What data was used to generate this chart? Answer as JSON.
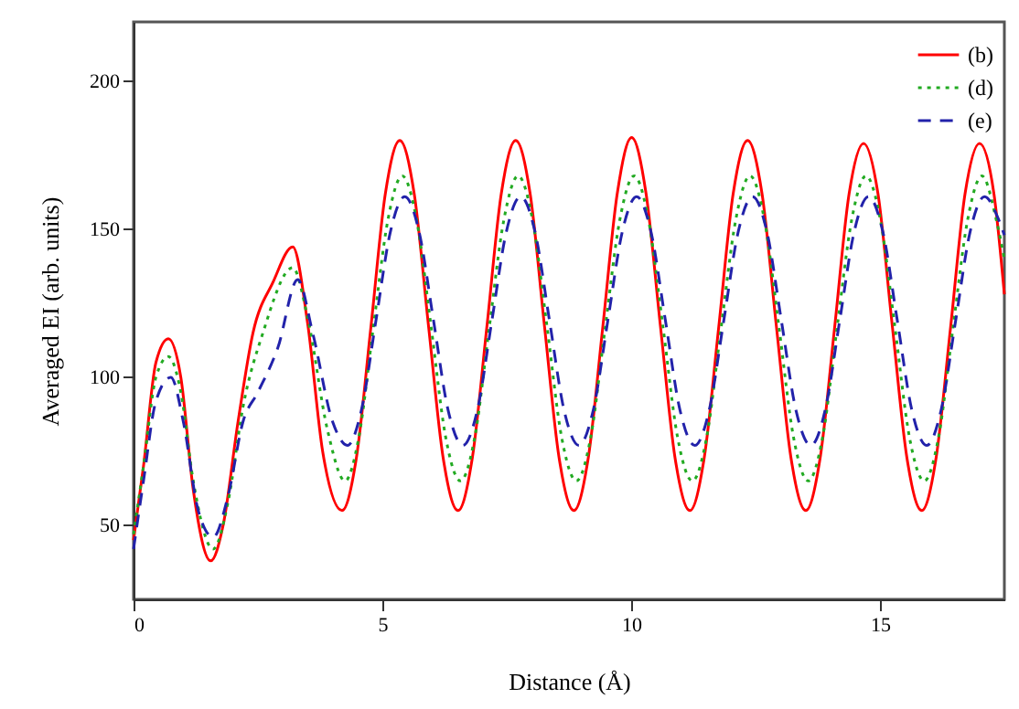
{
  "chart_data": {
    "type": "line",
    "xlabel": "Distance (Å)",
    "ylabel": "Averaged EI (arb. units)",
    "xlim": [
      0,
      17.5
    ],
    "xticks": [
      0,
      5,
      10,
      15
    ],
    "ylim": [
      25,
      220
    ],
    "yticks": [
      50,
      100,
      150,
      200
    ],
    "grid": false,
    "legend": "top right",
    "marker": "none",
    "series": [
      {
        "name": "(b)",
        "color": "#ff0000",
        "line_style": "solid",
        "x": [
          0,
          0.2,
          0.45,
          0.7,
          0.95,
          1.2,
          1.55,
          1.8,
          2.1,
          2.4,
          2.8,
          3.2,
          3.5,
          3.8,
          4.19,
          4.48,
          4.77,
          5.06,
          5.35,
          5.64,
          5.93,
          6.22,
          6.52,
          6.81,
          7.1,
          7.39,
          7.68,
          7.97,
          8.26,
          8.55,
          8.85,
          9.14,
          9.43,
          9.72,
          10.01,
          10.3,
          10.59,
          10.88,
          11.18,
          11.47,
          11.76,
          12.05,
          12.34,
          12.63,
          12.92,
          13.21,
          13.51,
          13.8,
          14.09,
          14.38,
          14.67,
          14.96,
          15.25,
          15.54,
          15.84,
          16.13,
          16.42,
          16.71,
          17.0,
          17.29,
          17.5
        ],
        "values": [
          45,
          70,
          105,
          113,
          100,
          62,
          38,
          50,
          85,
          115,
          132,
          144,
          118,
          75,
          55,
          73,
          117,
          162,
          180,
          162,
          117,
          73,
          55,
          73,
          117,
          162,
          180,
          162,
          117,
          73,
          55,
          73,
          117,
          162,
          181,
          162,
          117,
          73,
          55,
          73,
          117,
          162,
          180,
          162,
          117,
          73,
          55,
          73,
          117,
          162,
          179,
          162,
          117,
          73,
          55,
          73,
          117,
          162,
          179,
          162,
          128
        ]
      },
      {
        "name": "(d)",
        "color": "#22aa22",
        "line_style": "dotted",
        "x": [
          0,
          0.2,
          0.45,
          0.7,
          0.95,
          1.2,
          1.6,
          1.9,
          2.2,
          2.6,
          3.2,
          3.5,
          3.9,
          4.25,
          4.53,
          4.82,
          5.11,
          5.4,
          5.69,
          5.98,
          6.27,
          6.57,
          6.86,
          7.15,
          7.44,
          7.73,
          8.02,
          8.31,
          8.6,
          8.9,
          9.19,
          9.48,
          9.77,
          10.06,
          10.35,
          10.64,
          10.93,
          11.23,
          11.52,
          11.81,
          12.1,
          12.39,
          12.68,
          12.97,
          13.26,
          13.56,
          13.85,
          14.14,
          14.43,
          14.72,
          15.01,
          15.3,
          15.59,
          15.89,
          16.18,
          16.47,
          16.76,
          17.05,
          17.34,
          17.5
        ],
        "values": [
          47,
          70,
          100,
          107,
          95,
          65,
          42,
          58,
          90,
          115,
          137,
          120,
          82,
          65,
          80,
          117,
          153,
          168,
          153,
          117,
          80,
          65,
          80,
          117,
          153,
          168,
          153,
          117,
          80,
          65,
          80,
          117,
          153,
          168,
          153,
          117,
          80,
          65,
          80,
          117,
          153,
          168,
          153,
          117,
          80,
          65,
          80,
          117,
          153,
          168,
          153,
          117,
          80,
          65,
          80,
          117,
          153,
          168,
          153,
          140
        ]
      },
      {
        "name": "(e)",
        "color": "#2222aa",
        "line_style": "dashed",
        "x": [
          0,
          0.2,
          0.45,
          0.75,
          1.0,
          1.3,
          1.6,
          1.9,
          2.2,
          2.5,
          2.9,
          3.3,
          3.6,
          4.0,
          4.3,
          4.58,
          4.87,
          5.16,
          5.45,
          5.74,
          6.03,
          6.32,
          6.62,
          6.91,
          7.2,
          7.49,
          7.78,
          8.07,
          8.36,
          8.65,
          8.95,
          9.24,
          9.53,
          9.82,
          10.11,
          10.4,
          10.69,
          10.98,
          11.28,
          11.57,
          11.86,
          12.15,
          12.44,
          12.73,
          13.02,
          13.31,
          13.61,
          13.9,
          14.19,
          14.48,
          14.77,
          15.06,
          15.35,
          15.64,
          15.94,
          16.23,
          16.52,
          16.81,
          17.1,
          17.39,
          17.5
        ],
        "values": [
          42,
          65,
          92,
          100,
          85,
          55,
          46,
          60,
          85,
          95,
          110,
          133,
          115,
          85,
          77,
          89,
          119,
          149,
          161,
          149,
          119,
          89,
          77,
          89,
          119,
          149,
          161,
          149,
          119,
          89,
          77,
          89,
          119,
          149,
          161,
          149,
          119,
          89,
          77,
          89,
          119,
          149,
          161,
          149,
          119,
          89,
          77,
          89,
          119,
          149,
          161,
          149,
          119,
          89,
          77,
          89,
          119,
          149,
          161,
          153,
          148
        ]
      }
    ]
  }
}
